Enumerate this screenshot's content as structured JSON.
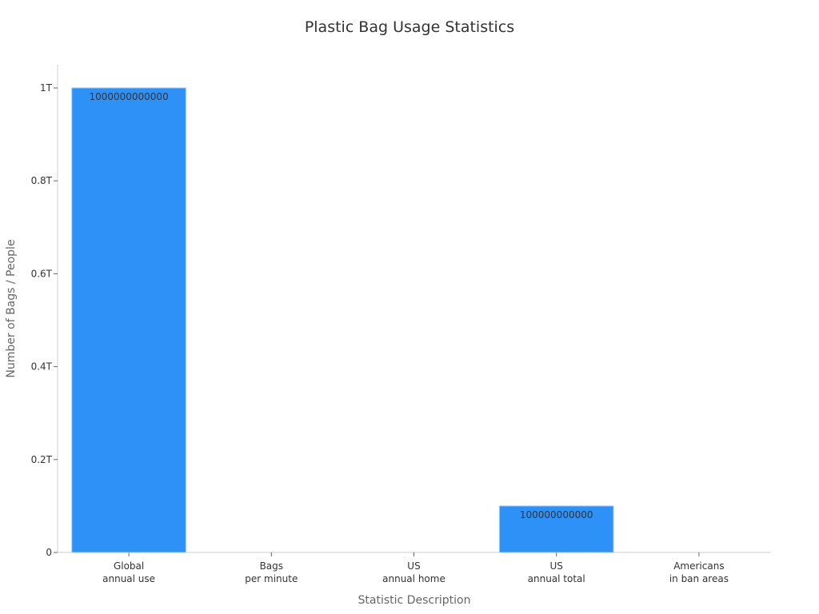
{
  "chart_data": {
    "type": "bar",
    "title": "Plastic Bag Usage Statistics",
    "xlabel": "Statistic Description",
    "ylabel": "Number of Bags / People",
    "categories": [
      [
        "Global",
        "annual use"
      ],
      [
        "Bags",
        "per minute"
      ],
      [
        "US",
        "annual home"
      ],
      [
        "US",
        "annual total"
      ],
      [
        "Americans",
        "in ban areas"
      ]
    ],
    "values": [
      1000000000000,
      null,
      null,
      100000000000,
      null
    ],
    "data_labels": [
      "1000000000000",
      "",
      "",
      "100000000000",
      ""
    ],
    "ylim": [
      0,
      1050000000000
    ],
    "yticks": [
      0,
      200000000000,
      400000000000,
      600000000000,
      800000000000,
      1000000000000
    ],
    "ytick_labels": [
      "0",
      "0.2T",
      "0.4T",
      "0.6T",
      "0.8T",
      "1T"
    ],
    "grid": false,
    "legend": "none",
    "bar_color": "#2e91f8"
  }
}
